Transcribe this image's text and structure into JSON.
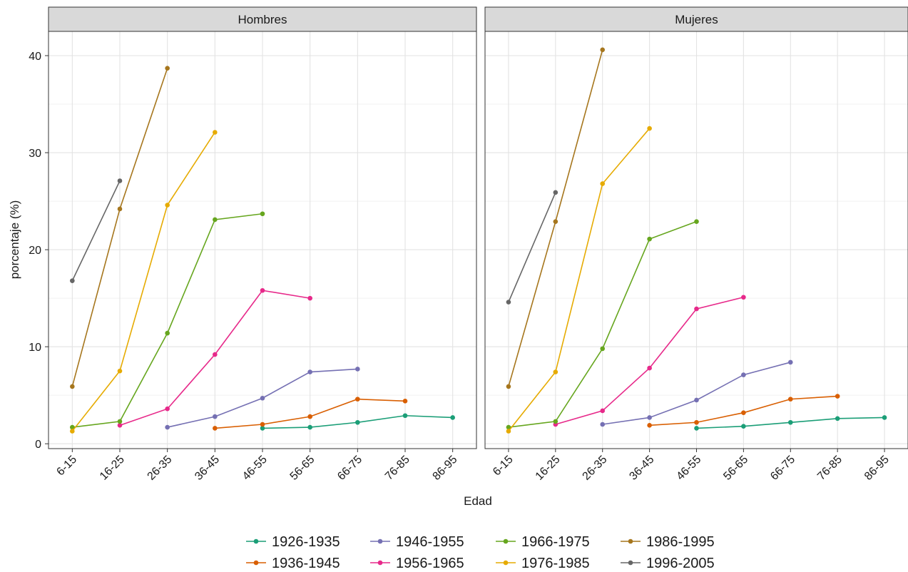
{
  "chart_data": {
    "type": "line",
    "facet_label_male": "Hombres",
    "facet_label_female": "Mujeres",
    "xlabel": "Edad",
    "ylabel": "porcentaje (%)",
    "categories": [
      "6-15",
      "16-25",
      "26-35",
      "36-45",
      "46-55",
      "56-65",
      "66-75",
      "76-85",
      "86-95"
    ],
    "ylim": [
      -0.5,
      42.5
    ],
    "yticks": [
      0,
      10,
      20,
      30,
      40
    ],
    "grid": true,
    "legend_position": "bottom",
    "legend_entries": [
      "1926-1935",
      "1936-1945",
      "1946-1955",
      "1956-1965",
      "1966-1975",
      "1976-1985",
      "1986-1995",
      "1996-2005"
    ],
    "colors": {
      "1926-1935": "#1b9e77",
      "1936-1945": "#d95f02",
      "1946-1955": "#7570b3",
      "1956-1965": "#e7298a",
      "1966-1975": "#66a61e",
      "1976-1985": "#e6ab02",
      "1986-1995": "#a6761d",
      "1996-2005": "#666666"
    },
    "panels": [
      {
        "facet": "Hombres",
        "series": [
          {
            "name": "1926-1935",
            "x": [
              "46-55",
              "56-65",
              "66-75",
              "76-85",
              "86-95"
            ],
            "values": [
              1.6,
              1.7,
              2.2,
              2.9,
              2.7
            ]
          },
          {
            "name": "1936-1945",
            "x": [
              "36-45",
              "46-55",
              "56-65",
              "66-75",
              "76-85"
            ],
            "values": [
              1.6,
              2.0,
              2.8,
              4.6,
              4.4
            ]
          },
          {
            "name": "1946-1955",
            "x": [
              "26-35",
              "36-45",
              "46-55",
              "56-65",
              "66-75"
            ],
            "values": [
              1.7,
              2.8,
              4.7,
              7.4,
              7.7
            ]
          },
          {
            "name": "1956-1965",
            "x": [
              "16-25",
              "26-35",
              "36-45",
              "46-55",
              "56-65"
            ],
            "values": [
              1.9,
              3.6,
              9.2,
              15.8,
              15.0
            ]
          },
          {
            "name": "1966-1975",
            "x": [
              "6-15",
              "16-25",
              "26-35",
              "36-45",
              "46-55"
            ],
            "values": [
              1.7,
              2.3,
              11.4,
              23.1,
              23.7
            ]
          },
          {
            "name": "1976-1985",
            "x": [
              "6-15",
              "16-25",
              "26-35",
              "36-45"
            ],
            "values": [
              1.3,
              7.5,
              24.6,
              32.1
            ]
          },
          {
            "name": "1986-1995",
            "x": [
              "6-15",
              "16-25",
              "26-35"
            ],
            "values": [
              5.9,
              24.2,
              38.7
            ]
          },
          {
            "name": "1996-2005",
            "x": [
              "6-15",
              "16-25"
            ],
            "values": [
              16.8,
              27.1
            ]
          }
        ]
      },
      {
        "facet": "Mujeres",
        "series": [
          {
            "name": "1926-1935",
            "x": [
              "46-55",
              "56-65",
              "66-75",
              "76-85",
              "86-95"
            ],
            "values": [
              1.6,
              1.8,
              2.2,
              2.6,
              2.7
            ]
          },
          {
            "name": "1936-1945",
            "x": [
              "36-45",
              "46-55",
              "56-65",
              "66-75",
              "76-85"
            ],
            "values": [
              1.9,
              2.2,
              3.2,
              4.6,
              4.9
            ]
          },
          {
            "name": "1946-1955",
            "x": [
              "26-35",
              "36-45",
              "46-55",
              "56-65",
              "66-75"
            ],
            "values": [
              2.0,
              2.7,
              4.5,
              7.1,
              8.4
            ]
          },
          {
            "name": "1956-1965",
            "x": [
              "16-25",
              "26-35",
              "36-45",
              "46-55",
              "56-65"
            ],
            "values": [
              2.0,
              3.4,
              7.8,
              13.9,
              15.1
            ]
          },
          {
            "name": "1966-1975",
            "x": [
              "6-15",
              "16-25",
              "26-35",
              "36-45",
              "46-55"
            ],
            "values": [
              1.7,
              2.3,
              9.8,
              21.1,
              22.9
            ]
          },
          {
            "name": "1976-1985",
            "x": [
              "6-15",
              "16-25",
              "26-35",
              "36-45"
            ],
            "values": [
              1.3,
              7.4,
              26.8,
              32.5
            ]
          },
          {
            "name": "1986-1995",
            "x": [
              "6-15",
              "16-25",
              "26-35"
            ],
            "values": [
              5.9,
              22.9,
              40.6
            ]
          },
          {
            "name": "1996-2005",
            "x": [
              "6-15",
              "16-25"
            ],
            "values": [
              14.6,
              25.9
            ]
          }
        ]
      }
    ]
  }
}
